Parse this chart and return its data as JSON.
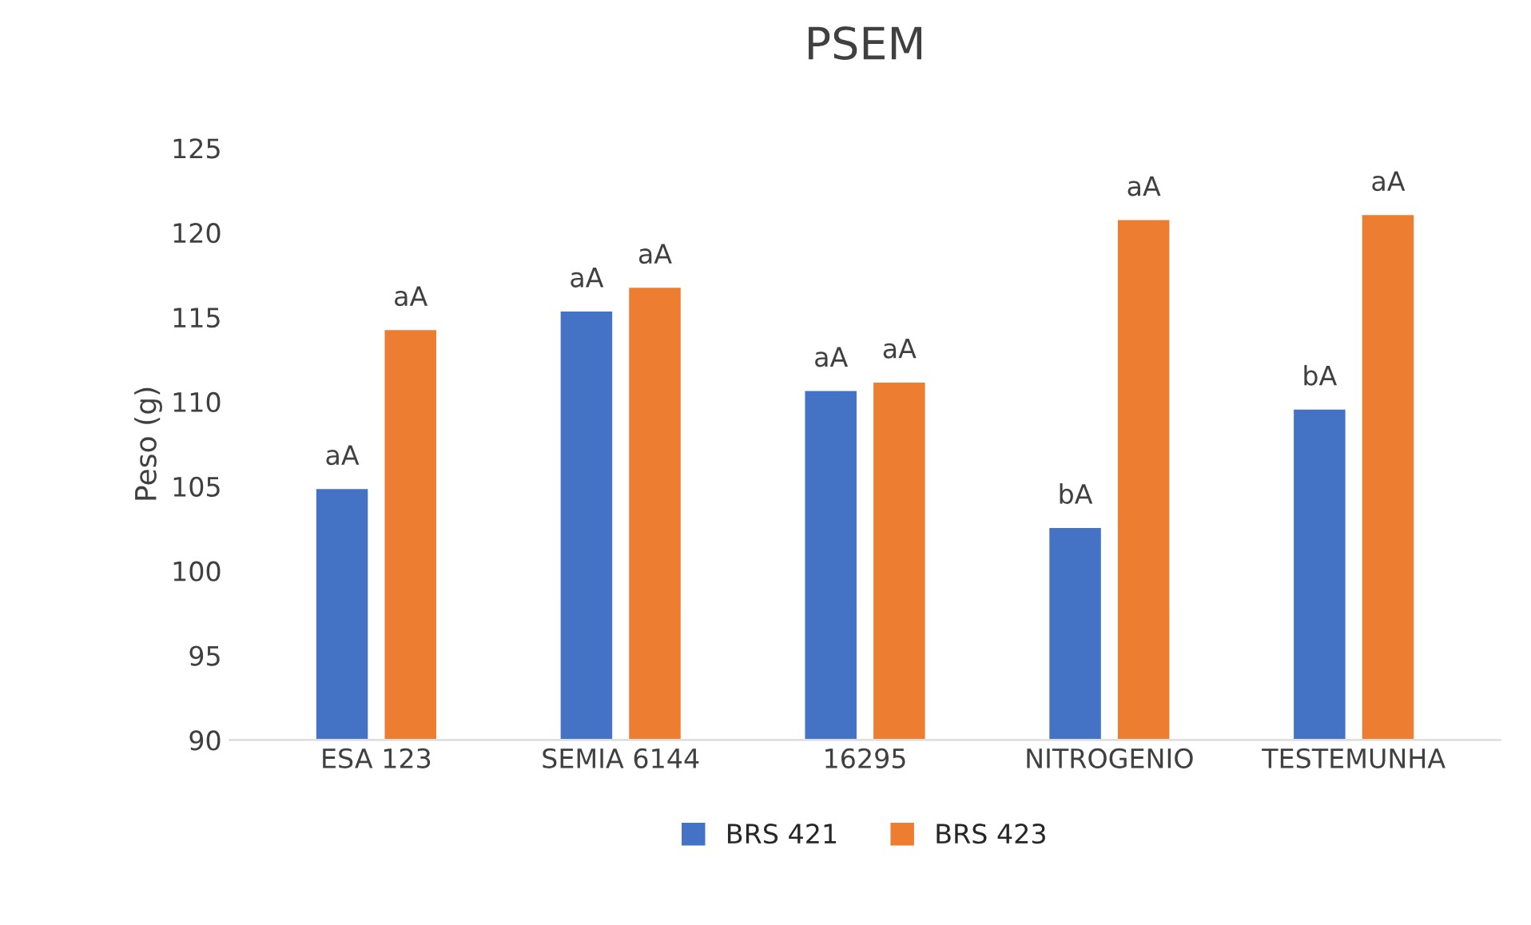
{
  "chart_data": {
    "type": "bar",
    "title": "PSEM",
    "ylabel": "Peso (g)",
    "categories": [
      "ESA 123",
      "SEMIA 6144",
      "16295",
      "NITROGENIO",
      "TESTEMUNHA"
    ],
    "series": [
      {
        "name": "BRS 421",
        "color": "#4472c4",
        "values": [
          104.9,
          115.4,
          110.7,
          102.6,
          109.6
        ],
        "value_labels": [
          "aA",
          "aA",
          "aA",
          "bA",
          "bA"
        ]
      },
      {
        "name": "BRS 423",
        "color": "#ed7d31",
        "values": [
          114.3,
          116.8,
          111.2,
          120.8,
          121.1
        ],
        "value_labels": [
          "aA",
          "aA",
          "aA",
          "aA",
          "aA"
        ]
      }
    ],
    "ylim": [
      90,
      125
    ],
    "yticks": [
      90,
      95,
      100,
      105,
      110,
      115,
      120,
      125
    ],
    "grid": false,
    "legend": "bottom"
  }
}
